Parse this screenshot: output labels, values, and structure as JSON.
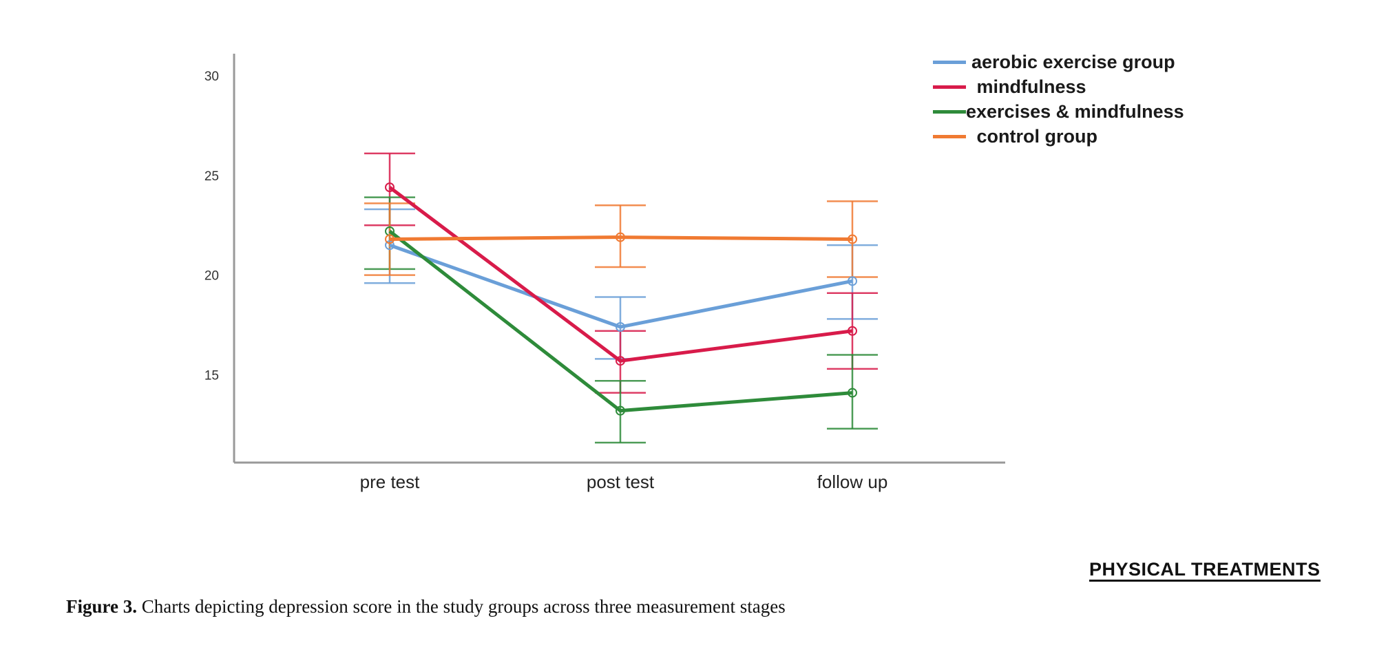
{
  "chart_data": {
    "type": "line",
    "title": "",
    "xlabel": "",
    "ylabel": "",
    "categories": [
      "pre test",
      "post test",
      "follow up"
    ],
    "ylim": [
      10.6,
      31.1
    ],
    "yticks": [
      15,
      20,
      25,
      30
    ],
    "grid": false,
    "legend_position": "top-right",
    "error_bars": true,
    "series": [
      {
        "name": "aerobic exercise group",
        "color": "#6a9fd8",
        "values": [
          21.5,
          17.4,
          19.7
        ],
        "ci_low": [
          19.6,
          15.8,
          17.8
        ],
        "ci_high": [
          23.3,
          18.9,
          21.5
        ]
      },
      {
        "name": "mindfulness",
        "color": "#d81b4a",
        "values": [
          24.4,
          15.7,
          17.2
        ],
        "ci_low": [
          22.5,
          14.1,
          15.3
        ],
        "ci_high": [
          26.1,
          17.2,
          19.1
        ]
      },
      {
        "name": "exercises & mindfulness",
        "color": "#2e8b3a",
        "values": [
          22.2,
          13.2,
          14.1
        ],
        "ci_low": [
          20.3,
          11.6,
          12.3
        ],
        "ci_high": [
          23.9,
          14.7,
          16.0
        ]
      },
      {
        "name": "control group",
        "color": "#f07a32",
        "values": [
          21.8,
          21.9,
          21.8
        ],
        "ci_low": [
          20.0,
          20.4,
          19.9
        ],
        "ci_high": [
          23.6,
          23.5,
          23.7
        ]
      }
    ]
  },
  "legend_labels": [
    "aerobic exercise group",
    " mindfulness",
    "exercises & mindfulness",
    " control group"
  ],
  "logo_text": "PHYSICAL TREATMENTS",
  "caption": {
    "label": "Figure 3.",
    "text": " Charts depicting depression score in the study groups across three measurement stages"
  }
}
